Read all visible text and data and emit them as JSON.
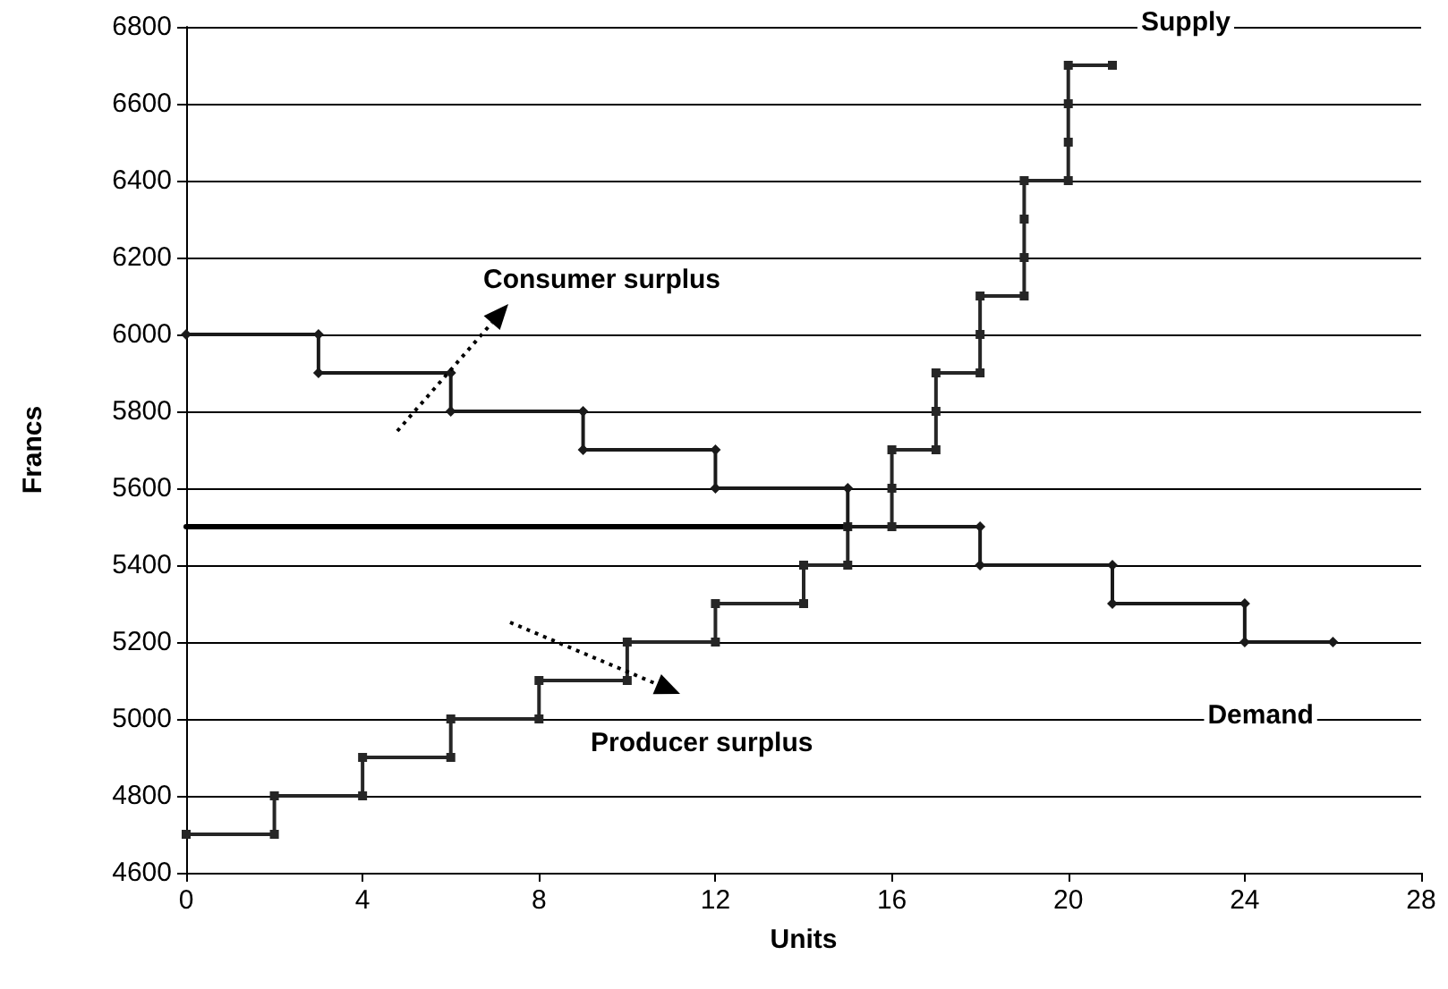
{
  "chart_data": {
    "type": "line",
    "xlabel": "Units",
    "ylabel": "Francs",
    "xlim": [
      0,
      28
    ],
    "xticks": [
      0,
      4,
      8,
      12,
      16,
      20,
      24,
      28
    ],
    "ylim": [
      4600,
      6800
    ],
    "yticks": [
      4600,
      4800,
      5000,
      5200,
      5400,
      5600,
      5800,
      6000,
      6200,
      6400,
      6600,
      6800
    ],
    "grid": "y",
    "legend": false,
    "line_style": "solid",
    "series": [
      {
        "name": "Supply",
        "color": "#262626",
        "marker": "square",
        "x": [
          0,
          2,
          2,
          4,
          4,
          6,
          6,
          8,
          8,
          10,
          10,
          12,
          12,
          14,
          14,
          15,
          15,
          16,
          16,
          16,
          17,
          17,
          17,
          18,
          18,
          18,
          19,
          19,
          19,
          19,
          20,
          20,
          20,
          20,
          21
        ],
        "values": [
          4700,
          4700,
          4800,
          4800,
          4900,
          4900,
          5000,
          5000,
          5100,
          5100,
          5200,
          5200,
          5300,
          5300,
          5400,
          5400,
          5500,
          5500,
          5600,
          5700,
          5700,
          5800,
          5900,
          5900,
          6000,
          6100,
          6100,
          6200,
          6300,
          6400,
          6400,
          6500,
          6600,
          6700,
          6700
        ]
      },
      {
        "name": "Demand",
        "color": "#1a1a1a",
        "marker": "diamond",
        "x": [
          0,
          3,
          3,
          6,
          6,
          9,
          9,
          12,
          12,
          15,
          15,
          18,
          18,
          21,
          21,
          24,
          24,
          26
        ],
        "values": [
          6000,
          6000,
          5900,
          5900,
          5800,
          5800,
          5700,
          5700,
          5600,
          5600,
          5500,
          5500,
          5400,
          5400,
          5300,
          5300,
          5200,
          5200
        ]
      },
      {
        "color": "#000000",
        "marker": "none",
        "x": [
          0,
          15
        ],
        "values": [
          5500,
          5500
        ]
      }
    ],
    "annotations": [
      "Consumer surplus",
      "Producer surplus"
    ]
  }
}
